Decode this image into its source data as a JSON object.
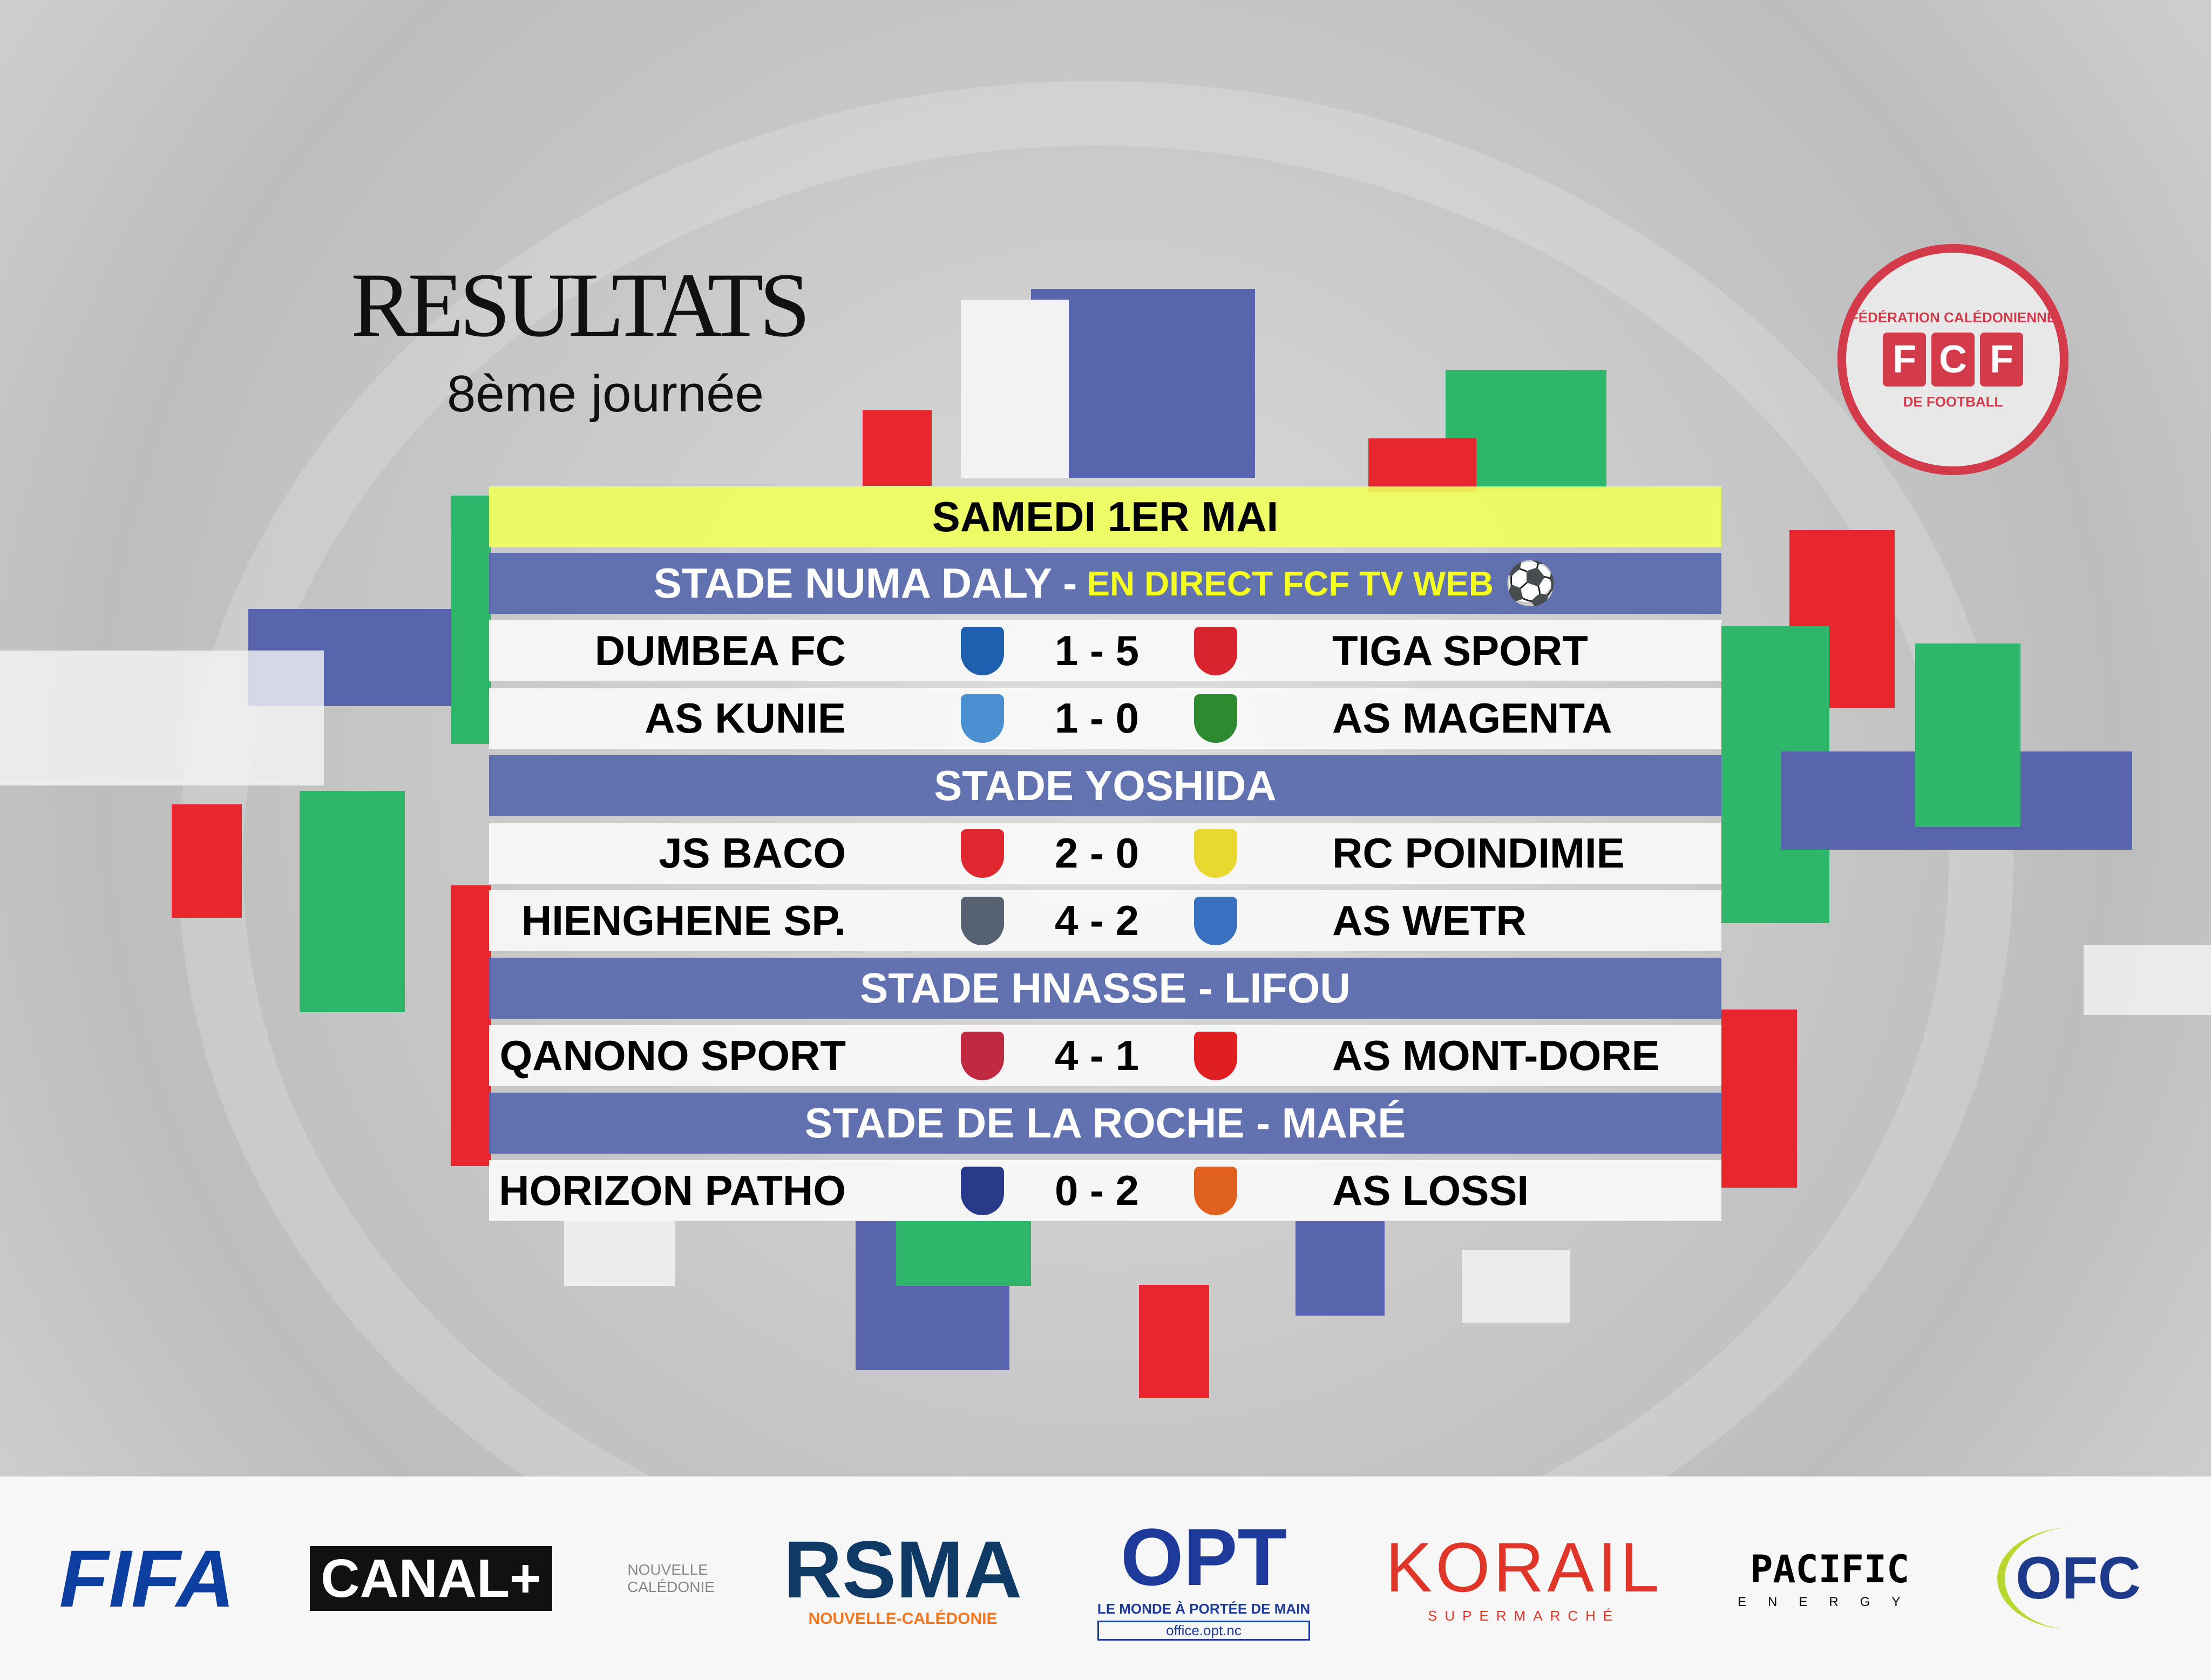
{
  "header": {
    "title": "RESULTATS",
    "subtitle": "8ème journée"
  },
  "logo": {
    "top": "FÉDÉRATION CALÉDONIENNE",
    "bottom": "DE FOOTBALL",
    "letters": [
      "F",
      "C",
      "F"
    ]
  },
  "date": "SAMEDI 1ER MAI",
  "venues": [
    {
      "name": "STADE NUMA DALY -",
      "extra": "EN DIRECT FCF TV WEB",
      "matches": [
        {
          "home": "DUMBEA FC",
          "score": "1 - 5",
          "away": "TIGA SPORT",
          "hc": "#1f5fb0",
          "ac": "#d8242e"
        },
        {
          "home": "AS KUNIE",
          "score": "1 - 0",
          "away": "AS MAGENTA",
          "hc": "#4a90d0",
          "ac": "#2e8a2e"
        }
      ]
    },
    {
      "name": "STADE YOSHIDA",
      "matches": [
        {
          "home": "JS BACO",
          "score": "2 - 0",
          "away": "RC POINDIMIE",
          "hc": "#e0262e",
          "ac": "#e8d830"
        },
        {
          "home": "HIENGHENE SP.",
          "score": "4 - 2",
          "away": "AS WETR",
          "hc": "#556070",
          "ac": "#3a70c0"
        }
      ]
    },
    {
      "name": "STADE HNASSE - LIFOU",
      "matches": [
        {
          "home": "QANONO SPORT",
          "score": "4 - 1",
          "away": "AS MONT-DORE",
          "hc": "#c02a40",
          "ac": "#e02020"
        }
      ]
    },
    {
      "name": "STADE DE LA ROCHE - MARÉ",
      "matches": [
        {
          "home": "HORIZON PATHO",
          "score": "0 - 2",
          "away": "AS LOSSI",
          "hc": "#2a3a8a",
          "ac": "#e06020"
        }
      ]
    }
  ],
  "sponsors": [
    {
      "name": "FIFA",
      "color": "#0d3fa0"
    },
    {
      "name": "CANAL+",
      "color": "#ffffff"
    },
    {
      "name": "NOUVELLE CALÉDONIE",
      "color": "#888888"
    },
    {
      "name": "RSMA",
      "sub": "NOUVELLE-CALÉDONIE",
      "color": "#0f3a66"
    },
    {
      "name": "OPT",
      "sub": "LE MONDE À PORTÉE DE MAIN",
      "url": "office.opt.nc",
      "color": "#1e3a9a"
    },
    {
      "name": "KORAIL",
      "sub": "SUPERMARCHÉ",
      "color": "#e0362a"
    },
    {
      "name": "PACIFIC",
      "sub": "ENERGY",
      "color": "#111111"
    },
    {
      "name": "OFC",
      "color": "#1e3a8a"
    }
  ]
}
